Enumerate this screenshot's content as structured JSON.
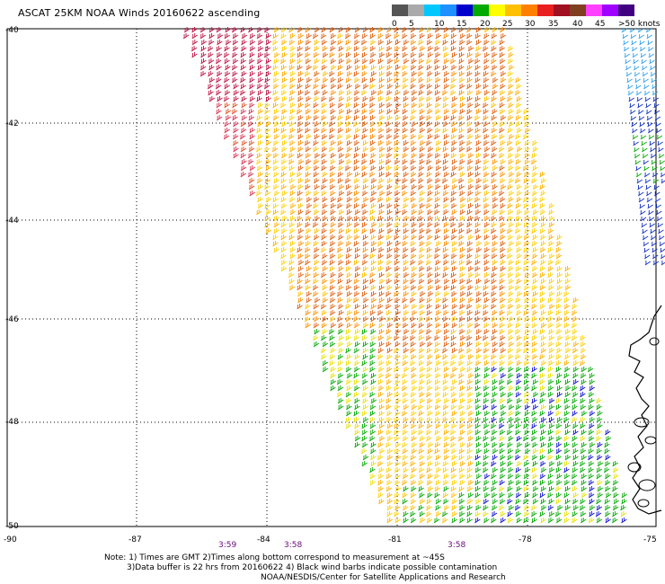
{
  "title": "ASCAT 25KM NOAA Winds 20160622 ascending",
  "legend": {
    "colors": [
      "#555555",
      "#aaaaaa",
      "#00c8ff",
      "#1e90ff",
      "#0000cc",
      "#00aa00",
      "#ffff00",
      "#ffc000",
      "#ff8000",
      "#e82020",
      "#a01020",
      "#804020",
      "#ff40ff",
      "#a000ff",
      "#400080"
    ],
    "labels": [
      "0",
      "5",
      "10",
      "15",
      "20",
      "25",
      "30",
      "35",
      "40",
      "45",
      ">50 knots"
    ]
  },
  "axes": {
    "lon_labels": [
      "-90",
      "-87",
      "-84",
      "-81",
      "-78",
      "-75"
    ],
    "lat_labels": [
      "-40",
      "-42",
      "-44",
      "-46",
      "-48",
      "-50"
    ]
  },
  "pass_times": [
    "3:59",
    "3:58",
    "3:58"
  ],
  "notes": [
    "Note: 1) Times are GMT 2)Times along bottom correspond to measurement at ~45S",
    "3)Data buffer is 22 hrs from 20160622 4) Black wind barbs indicate possible contamination",
    "NOAA/NESDIS/Center for Satellite Applications and Research"
  ]
}
